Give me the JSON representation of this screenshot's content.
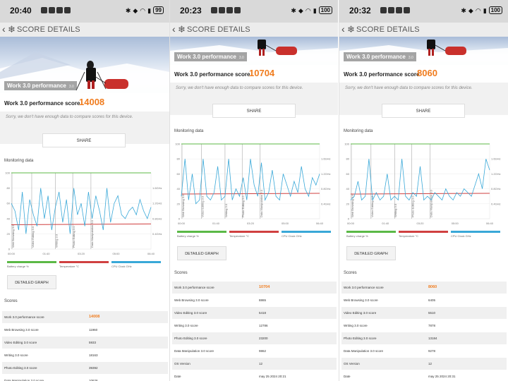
{
  "header_title": "SCORE DETAILS",
  "hero_label": "Work 3.0 performance",
  "hero_badge": "3.0",
  "score_label": "Work 3.0 performance score",
  "notice": "Sorry, we don't have enough data to compare scores for this device.",
  "share_label": "SHARE",
  "monitoring_title": "Monitoring data",
  "detailed_graph_label": "DETAILED GRAPH",
  "scores_title": "Scores",
  "legend": {
    "battery": "Battery charge %",
    "temperature": "Temperature °C",
    "cpu": "CPU Clock GHz"
  },
  "colors": {
    "accent": "#f07c1e",
    "cpu_line": "#39a8d8",
    "battery": "#5bb946",
    "temperature": "#d04040"
  },
  "chart_axes": {
    "y_left": [
      "100",
      "80",
      "60",
      "40",
      "20",
      "0"
    ],
    "y_right": [
      "1.6GHz",
      "1.2GHz",
      "0.8GHz",
      "0.4GHz"
    ],
    "x": [
      "00:00",
      "01:40",
      "03:20",
      "05:00",
      "06:40"
    ],
    "markers": [
      "Web Browsing 3.0",
      "Video Editing 3.0",
      "Writing 3.0",
      "Photo Editing 3.0",
      "Data Manipulation 3.0"
    ]
  },
  "panels": [
    {
      "status_time": "20:40",
      "battery": "99",
      "score": "14008",
      "rows": [
        {
          "label": "Work 3.0 performance score",
          "value": "14008",
          "primary": true
        },
        {
          "label": "Web Browsing 3.0 score",
          "value": "11960"
        },
        {
          "label": "Video Editing 3.0 score",
          "value": "5933"
        },
        {
          "label": "Writing 3.0 score",
          "value": "18163"
        },
        {
          "label": "Photo Editing 3.0 score",
          "value": "39392"
        },
        {
          "label": "Data Manipulation 3.0 score",
          "value": "10626"
        }
      ],
      "chart_data": {
        "type": "line",
        "title": "Monitoring data",
        "x_range_seconds": [
          0,
          460
        ],
        "marker_times": [
          0,
          65,
          143,
          200,
          260
        ],
        "series": [
          {
            "name": "Battery charge %",
            "values": [
              100,
              100
            ]
          },
          {
            "name": "Temperature °C",
            "values": [
              32,
              33
            ]
          },
          {
            "name": "CPU Clock GHz",
            "values": [
              1.2,
              1.0,
              0.5,
              1.5,
              0.4,
              1.3,
              0.9,
              0.6,
              1.6,
              0.8,
              1.4,
              0.5,
              1.1,
              1.5,
              0.7,
              1.3,
              0.4,
              1.6,
              0.9,
              1.2,
              0.6,
              1.5,
              0.8,
              1.4,
              1.0,
              0.5,
              1.6,
              0.7,
              1.2,
              1.4,
              0.9,
              0.8,
              1.0,
              1.1,
              0.9,
              1.3,
              1.0,
              0.8,
              1.1
            ]
          }
        ]
      }
    },
    {
      "status_time": "20:23",
      "battery": "100",
      "score": "10704",
      "rows": [
        {
          "label": "Work 3.0 performance score",
          "value": "10704",
          "primary": true
        },
        {
          "label": "Web Browsing 3.0 score",
          "value": "8865"
        },
        {
          "label": "Video Editing 3.0 score",
          "value": "5418"
        },
        {
          "label": "Writing 3.0 score",
          "value": "12786"
        },
        {
          "label": "Photo Editing 3.0 score",
          "value": "23200"
        },
        {
          "label": "Data Manipulation 3.0 score",
          "value": "9862"
        },
        {
          "label": "OS Version",
          "value": "12"
        },
        {
          "label": "Date",
          "value": "may 25 2024 20:21"
        }
      ],
      "chart_data": {
        "type": "line",
        "title": "Monitoring data",
        "x_range_seconds": [
          0,
          460
        ],
        "marker_times": [
          0,
          65,
          143,
          200,
          260
        ],
        "series": [
          {
            "name": "Battery charge %",
            "values": [
              100,
              100
            ]
          },
          {
            "name": "Temperature °C",
            "values": [
              33,
              34
            ]
          },
          {
            "name": "CPU Clock GHz",
            "values": [
              0.6,
              1.6,
              0.5,
              1.2,
              0.4,
              0.5,
              1.6,
              0.6,
              0.5,
              0.7,
              1.4,
              0.5,
              0.6,
              1.6,
              0.5,
              0.8,
              0.6,
              1.1,
              0.5,
              1.6,
              0.9,
              0.6,
              1.5,
              0.5,
              0.7,
              1.3,
              0.6,
              0.5,
              1.2,
              0.9,
              0.6,
              1.0,
              0.7,
              1.4,
              0.8,
              0.6,
              1.1,
              0.9,
              1.2
            ]
          }
        ]
      }
    },
    {
      "status_time": "20:32",
      "battery": "100",
      "score": "8060",
      "rows": [
        {
          "label": "Work 3.0 performance score",
          "value": "8060",
          "primary": true
        },
        {
          "label": "Web Browsing 3.0 score",
          "value": "6405"
        },
        {
          "label": "Video Editing 3.0 score",
          "value": "5510"
        },
        {
          "label": "Writing 3.0 score",
          "value": "7878"
        },
        {
          "label": "Photo Editing 3.0 score",
          "value": "13184"
        },
        {
          "label": "Data Manipulation 3.0 score",
          "value": "9278"
        },
        {
          "label": "OS Version",
          "value": "12"
        },
        {
          "label": "Date",
          "value": "may 25 2024 20:31"
        }
      ],
      "chart_data": {
        "type": "line",
        "title": "Monitoring data",
        "x_range_seconds": [
          0,
          460
        ],
        "marker_times": [
          0,
          65,
          143,
          200,
          260
        ],
        "series": [
          {
            "name": "Battery charge %",
            "values": [
              100,
              100
            ]
          },
          {
            "name": "Temperature °C",
            "values": [
              33,
              34
            ]
          },
          {
            "name": "CPU Clock GHz",
            "values": [
              0.5,
              0.6,
              1.0,
              0.5,
              0.6,
              1.6,
              0.5,
              0.7,
              0.5,
              0.6,
              1.2,
              0.5,
              0.6,
              0.5,
              1.6,
              0.6,
              0.5,
              0.7,
              0.6,
              1.4,
              0.5,
              0.6,
              0.5,
              0.7,
              0.6,
              0.5,
              0.8,
              0.6,
              0.5,
              0.7,
              0.6,
              0.8,
              0.7,
              0.6,
              0.9,
              1.2,
              0.8,
              1.6,
              1.3
            ]
          }
        ]
      }
    }
  ]
}
